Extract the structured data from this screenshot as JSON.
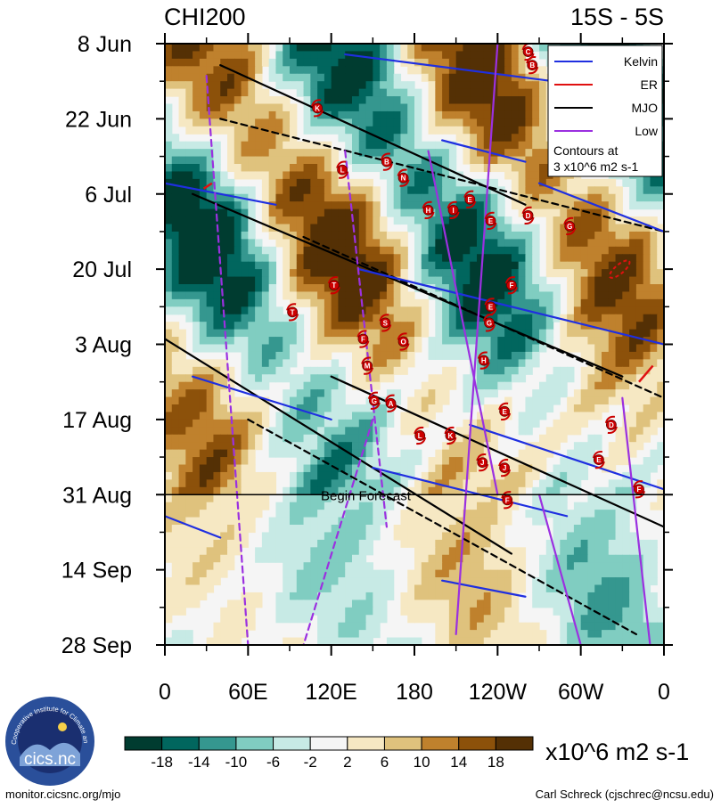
{
  "chart_data": {
    "type": "heatmap",
    "title": "CHI200",
    "subtitle": "15S - 5S",
    "y_ticks": [
      "8 Jun",
      "22 Jun",
      "6 Jul",
      "20 Jul",
      "3 Aug",
      "17 Aug",
      "31 Aug",
      "14 Sep",
      "28 Sep"
    ],
    "y_tick_days": [
      0,
      14,
      28,
      42,
      56,
      70,
      84,
      98,
      112
    ],
    "x_ticks": [
      "0",
      "60E",
      "120E",
      "180",
      "120W",
      "60W",
      "0"
    ],
    "x_tick_lon": [
      0,
      60,
      120,
      180,
      240,
      300,
      360
    ],
    "xlim": [
      0,
      360
    ],
    "forecast_day": 84,
    "forecast_label": "Begin Forecast",
    "legend": {
      "position": "top-right",
      "entries": [
        {
          "name": "Kelvin",
          "color": "#1f2fe0"
        },
        {
          "name": "ER",
          "color": "#e01010"
        },
        {
          "name": "MJO",
          "color": "#000000"
        },
        {
          "name": "Low",
          "color": "#9b30e0"
        }
      ],
      "note_line1": "Contours at",
      "note_line2": "3 x10^6 m2 s-1"
    },
    "colorbar": {
      "unit": "x10^6 m2 s-1",
      "labels": [
        "-18",
        "-14",
        "-10",
        "-6",
        "-2",
        "2",
        "6",
        "10",
        "14",
        "18"
      ],
      "colors": [
        "#003c30",
        "#01665e",
        "#35978f",
        "#80cdc1",
        "#c7eae5",
        "#f5f5f5",
        "#f6e8c3",
        "#dfc27d",
        "#bf812d",
        "#8c510a",
        "#543005"
      ]
    },
    "storms": [
      {
        "s": "C",
        "lon": 262,
        "day": 1.5
      },
      {
        "s": "B",
        "lon": 265,
        "day": 4
      },
      {
        "s": "K",
        "lon": 110,
        "day": 12
      },
      {
        "s": "B",
        "lon": 160,
        "day": 22
      },
      {
        "s": "L",
        "lon": 128,
        "day": 23.5
      },
      {
        "s": "N",
        "lon": 172,
        "day": 25
      },
      {
        "s": "H",
        "lon": 190,
        "day": 31
      },
      {
        "s": "I",
        "lon": 208,
        "day": 31
      },
      {
        "s": "E",
        "lon": 220,
        "day": 29
      },
      {
        "s": "E",
        "lon": 235,
        "day": 33
      },
      {
        "s": "D",
        "lon": 262,
        "day": 32
      },
      {
        "s": "G",
        "lon": 292,
        "day": 34
      },
      {
        "s": "T",
        "lon": 122,
        "day": 45
      },
      {
        "s": "F",
        "lon": 250,
        "day": 45
      },
      {
        "s": "T",
        "lon": 92,
        "day": 50
      },
      {
        "s": "E",
        "lon": 235,
        "day": 49
      },
      {
        "s": "S",
        "lon": 159,
        "day": 52
      },
      {
        "s": "G",
        "lon": 234,
        "day": 52
      },
      {
        "s": "F",
        "lon": 143,
        "day": 55
      },
      {
        "s": "O",
        "lon": 172,
        "day": 55.5
      },
      {
        "s": "H",
        "lon": 230,
        "day": 59
      },
      {
        "s": "M",
        "lon": 146,
        "day": 60
      },
      {
        "s": "G",
        "lon": 151,
        "day": 66.5
      },
      {
        "s": "A",
        "lon": 163,
        "day": 67
      },
      {
        "s": "E",
        "lon": 245,
        "day": 68.5
      },
      {
        "s": "D",
        "lon": 322,
        "day": 71
      },
      {
        "s": "L",
        "lon": 184,
        "day": 73
      },
      {
        "s": "K",
        "lon": 206,
        "day": 73
      },
      {
        "s": "J",
        "lon": 229,
        "day": 78
      },
      {
        "s": "J",
        "lon": 245,
        "day": 79
      },
      {
        "s": "E",
        "lon": 313,
        "day": 77.5
      },
      {
        "s": "F",
        "lon": 342,
        "day": 83
      },
      {
        "s": "F",
        "lon": 247,
        "day": 85
      }
    ]
  },
  "footer": {
    "left": "monitor.cicsnc.org/mjo",
    "right": "Carl Schreck (cjschrec@ncsu.edu)"
  },
  "logo": {
    "text": "cics.nc",
    "ring_text": "Cooperative Institute for Climate and Satellites"
  }
}
